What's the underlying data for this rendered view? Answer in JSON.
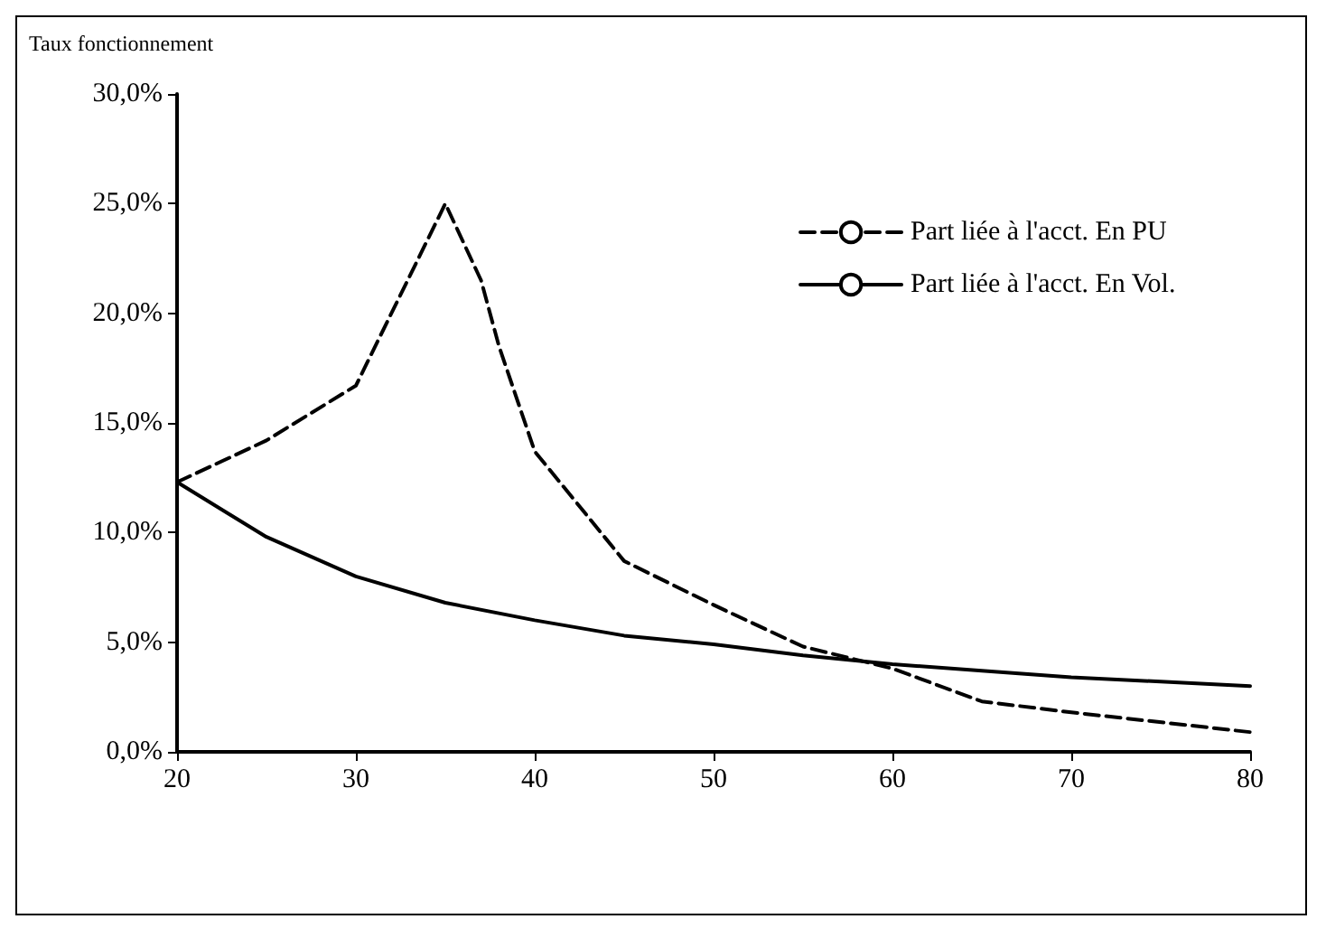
{
  "chart_data": {
    "type": "line",
    "ylabel": "Taux fonctionnement",
    "x": [
      20,
      25,
      30,
      35,
      37,
      38,
      40,
      45,
      50,
      55,
      60,
      65,
      70,
      80
    ],
    "series": [
      {
        "name": "Part liée à l'acct. En PU",
        "color": "#000000",
        "line_style": "dashed",
        "values": [
          12.3,
          14.2,
          16.7,
          25.0,
          21.5,
          18.5,
          13.7,
          8.7,
          6.7,
          4.8,
          3.8,
          2.3,
          1.8,
          0.9
        ]
      },
      {
        "name": "Part liée à l'acct. En Vol.",
        "color": "#000000",
        "line_style": "solid",
        "x": [
          20,
          25,
          30,
          35,
          40,
          45,
          50,
          55,
          60,
          65,
          70,
          75,
          80
        ],
        "values": [
          12.3,
          9.8,
          8.0,
          6.8,
          6.0,
          5.3,
          4.9,
          4.4,
          4.0,
          3.7,
          3.4,
          3.2,
          3.0
        ]
      }
    ],
    "xlim": [
      20,
      80
    ],
    "xticks": [
      20,
      30,
      40,
      50,
      60,
      70,
      80
    ],
    "ylim": [
      0,
      30
    ],
    "yticks": [
      {
        "value": 0,
        "label": "0,0%"
      },
      {
        "value": 5,
        "label": "5,0%"
      },
      {
        "value": 10,
        "label": "10,0%"
      },
      {
        "value": 15,
        "label": "15,0%"
      },
      {
        "value": 20,
        "label": "20,0%"
      },
      {
        "value": 25,
        "label": "25,0%"
      },
      {
        "value": 30,
        "label": "30,0%"
      }
    ],
    "grid": false,
    "legend": "top right",
    "marker": "none"
  }
}
